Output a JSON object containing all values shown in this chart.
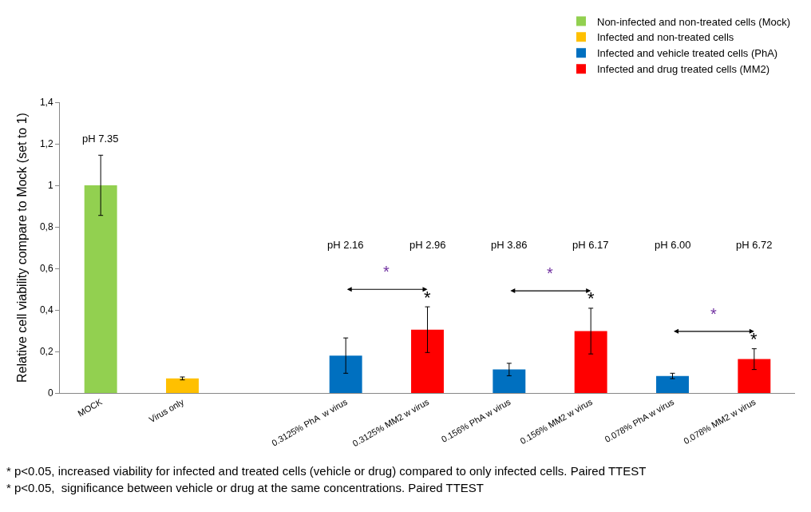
{
  "chart_data": {
    "type": "bar",
    "ylabel": "Relative cell viability compare to Mock (set to 1)",
    "categories": [
      "MOCK",
      "Virus only",
      null,
      "0.3125% PhA  w virus",
      "0.3125% MM2 w virus",
      "0.156% PhA w virus",
      "0.156% MM2 w virus",
      "0.078% PhA w virus",
      "0.078% MM2 w virus"
    ],
    "series": [
      {
        "name": "Non-infected and non-treated cells (Mock)",
        "color": "#92d050",
        "values": [
          1.0,
          null,
          null,
          null,
          null,
          null,
          null,
          null,
          null
        ],
        "errors": [
          0.145,
          null,
          null,
          null,
          null,
          null,
          null,
          null,
          null
        ]
      },
      {
        "name": "Infected and non-treated cells",
        "color": "#ffc000",
        "values": [
          null,
          0.07,
          null,
          null,
          null,
          null,
          null,
          null,
          null
        ],
        "errors": [
          null,
          0.007,
          null,
          null,
          null,
          null,
          null,
          null,
          null
        ]
      },
      {
        "name": "Infected and vehicle treated cells (PhA)",
        "color": "#0070c0",
        "values": [
          null,
          null,
          null,
          0.18,
          null,
          0.113,
          null,
          0.082,
          null
        ],
        "errors": [
          null,
          null,
          null,
          0.085,
          null,
          0.03,
          null,
          0.013,
          null
        ]
      },
      {
        "name": "Infected and drug treated cells (MM2)",
        "color": "#ff0000",
        "values": [
          null,
          null,
          null,
          null,
          0.305,
          null,
          0.298,
          null,
          0.163
        ],
        "errors": [
          null,
          null,
          null,
          null,
          0.11,
          null,
          0.11,
          null,
          0.05
        ]
      }
    ],
    "ylim": [
      0,
      1.4
    ],
    "yticks": [
      0,
      {
        "value": 0.2,
        "label": "0,2"
      },
      {
        "value": 0.4,
        "label": "0,4"
      },
      {
        "value": 0.6,
        "label": "0,6"
      },
      {
        "value": 0.8,
        "label": "0,8"
      },
      1,
      {
        "value": 1.2,
        "label": "1,2"
      },
      {
        "value": 1.4,
        "label": "1,4"
      }
    ],
    "grid": false,
    "legend": "top right",
    "annotations": [
      "pH 7.35",
      "pH 2.16",
      "pH 2.96",
      "pH 3.86",
      "pH 6.17",
      "pH 6.00",
      "pH 6.72",
      "*",
      "*",
      "*",
      "*",
      "*",
      "*",
      "* p<0.05, increased viability for infected and treated cells (vehicle or drug) compared to only infected cells. Paired TTEST",
      "* p<0.05,  significance between vehicle or drug at the same concentrations. Paired TTEST"
    ]
  }
}
